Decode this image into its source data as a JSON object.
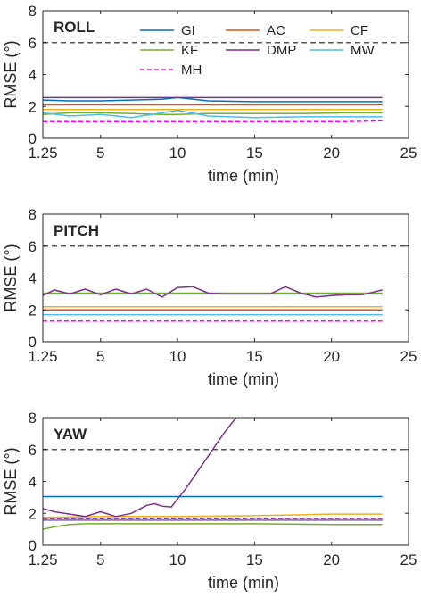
{
  "chart_data": [
    {
      "type": "line",
      "title": "ROLL",
      "xlabel": "time (min)",
      "ylabel": "RMSE (°)",
      "xlim": [
        1.25,
        25
      ],
      "ylim": [
        0,
        8
      ],
      "xticks": [
        "1.25",
        "5",
        "10",
        "15",
        "20",
        "25"
      ],
      "yticks": [
        "0",
        "2",
        "4",
        "6",
        "8"
      ],
      "grid": false,
      "legend": "top-right",
      "reference_line": {
        "y": 6,
        "style": "dashed",
        "color": "#555555"
      },
      "x": [
        1.25,
        3,
        5,
        7,
        9,
        10,
        12,
        15,
        18,
        21,
        23.3
      ],
      "series": [
        {
          "name": "GI",
          "color": "#0072BD",
          "dashed": false,
          "values": [
            2.4,
            2.35,
            2.35,
            2.4,
            2.45,
            2.55,
            2.35,
            2.3,
            2.3,
            2.3,
            2.3
          ]
        },
        {
          "name": "AC",
          "color": "#D95319",
          "dashed": false,
          "values": [
            2.1,
            2.1,
            2.1,
            2.1,
            2.1,
            2.1,
            2.1,
            2.1,
            2.1,
            2.1,
            2.1
          ]
        },
        {
          "name": "CF",
          "color": "#EDB120",
          "dashed": false,
          "values": [
            1.8,
            1.8,
            1.8,
            1.8,
            1.8,
            1.8,
            1.8,
            1.8,
            1.8,
            1.8,
            1.8
          ]
        },
        {
          "name": "KF",
          "color": "#77AC30",
          "dashed": false,
          "values": [
            1.5,
            1.6,
            1.6,
            1.55,
            1.5,
            1.5,
            1.55,
            1.55,
            1.55,
            1.6,
            1.6
          ]
        },
        {
          "name": "DMP",
          "color": "#7E2F8E",
          "dashed": false,
          "values": [
            2.55,
            2.55,
            2.55,
            2.55,
            2.55,
            2.55,
            2.55,
            2.55,
            2.55,
            2.55,
            2.55
          ]
        },
        {
          "name": "MW",
          "color": "#4DBEEE",
          "dashed": false,
          "values": [
            1.6,
            1.4,
            1.5,
            1.3,
            1.6,
            1.75,
            1.4,
            1.3,
            1.35,
            1.35,
            1.35
          ]
        },
        {
          "name": "MH",
          "color": "#FF00FF",
          "dashed": true,
          "values": [
            1.05,
            1.05,
            1.05,
            1.05,
            1.05,
            1.05,
            1.05,
            1.05,
            1.05,
            1.05,
            1.1
          ]
        }
      ]
    },
    {
      "type": "line",
      "title": "PITCH",
      "xlabel": "time (min)",
      "ylabel": "RMSE (°)",
      "xlim": [
        1.25,
        25
      ],
      "ylim": [
        0,
        8
      ],
      "xticks": [
        "1.25",
        "5",
        "10",
        "15",
        "20",
        "25"
      ],
      "yticks": [
        "0",
        "2",
        "4",
        "6",
        "8"
      ],
      "grid": false,
      "reference_line": {
        "y": 6,
        "style": "dashed",
        "color": "#555555"
      },
      "x": [
        1.25,
        2,
        3,
        4,
        5,
        6,
        7,
        8,
        9,
        10,
        11,
        12,
        13,
        14,
        15,
        16,
        17,
        18,
        19,
        20,
        21,
        22,
        23.3
      ],
      "series": [
        {
          "name": "GI",
          "color": "#0072BD",
          "dashed": false,
          "values": [
            3.0,
            3.0,
            3.0,
            3.0,
            3.0,
            3.0,
            3.0,
            3.0,
            3.0,
            3.0,
            3.0,
            3.0,
            3.0,
            3.0,
            3.0,
            3.0,
            3.0,
            3.0,
            3.0,
            3.0,
            3.0,
            3.0,
            3.0
          ]
        },
        {
          "name": "AC",
          "color": "#D95319",
          "dashed": false,
          "values": [
            2.0,
            2.0,
            2.0,
            2.0,
            2.0,
            2.0,
            2.0,
            2.0,
            2.0,
            2.0,
            2.0,
            2.0,
            2.0,
            2.0,
            2.0,
            2.0,
            2.0,
            2.0,
            2.0,
            2.0,
            2.0,
            2.0,
            2.0
          ]
        },
        {
          "name": "CF",
          "color": "#EDB120",
          "dashed": false,
          "values": [
            2.2,
            2.2,
            2.2,
            2.2,
            2.2,
            2.2,
            2.2,
            2.2,
            2.2,
            2.2,
            2.2,
            2.2,
            2.2,
            2.2,
            2.2,
            2.2,
            2.2,
            2.2,
            2.2,
            2.2,
            2.2,
            2.2,
            2.2
          ]
        },
        {
          "name": "KF",
          "color": "#77AC30",
          "dashed": false,
          "values": [
            3.05,
            3.05,
            3.05,
            3.05,
            3.05,
            3.05,
            3.05,
            3.05,
            3.05,
            3.05,
            3.05,
            3.05,
            3.05,
            3.05,
            3.05,
            3.05,
            3.05,
            3.05,
            3.05,
            3.05,
            3.05,
            3.05,
            3.05
          ]
        },
        {
          "name": "DMP",
          "color": "#7E2F8E",
          "dashed": false,
          "values": [
            2.9,
            3.25,
            3.0,
            3.3,
            2.95,
            3.3,
            3.0,
            3.3,
            2.8,
            3.4,
            3.45,
            3.05,
            3.0,
            3.0,
            3.0,
            3.0,
            3.45,
            3.05,
            2.8,
            2.9,
            2.95,
            2.95,
            3.25
          ]
        },
        {
          "name": "MW",
          "color": "#4DBEEE",
          "dashed": false,
          "values": [
            1.7,
            1.7,
            1.7,
            1.7,
            1.7,
            1.7,
            1.7,
            1.7,
            1.7,
            1.7,
            1.7,
            1.7,
            1.7,
            1.7,
            1.7,
            1.7,
            1.7,
            1.7,
            1.7,
            1.7,
            1.7,
            1.7,
            1.7
          ]
        },
        {
          "name": "MH",
          "color": "#FF00FF",
          "dashed": true,
          "values": [
            1.3,
            1.3,
            1.3,
            1.3,
            1.3,
            1.3,
            1.3,
            1.3,
            1.3,
            1.3,
            1.3,
            1.3,
            1.3,
            1.3,
            1.3,
            1.3,
            1.3,
            1.3,
            1.3,
            1.3,
            1.3,
            1.3,
            1.3
          ]
        }
      ]
    },
    {
      "type": "line",
      "title": "YAW",
      "xlabel": "time (min)",
      "ylabel": "RMSE (°)",
      "xlim": [
        1.25,
        25
      ],
      "ylim": [
        0,
        8
      ],
      "xticks": [
        "1.25",
        "5",
        "10",
        "15",
        "20",
        "25"
      ],
      "yticks": [
        "0",
        "2",
        "4",
        "6",
        "8"
      ],
      "grid": false,
      "reference_line": {
        "y": 6,
        "style": "dashed",
        "color": "#555555"
      },
      "x": [
        1.25,
        2,
        3,
        4,
        5,
        6,
        7,
        8,
        8.5,
        9,
        9.6,
        10,
        10.5,
        11,
        12,
        13,
        13.8
      ],
      "series": [
        {
          "name": "GI",
          "color": "#0072BD",
          "dashed": false,
          "x": [
            1.25,
            23.3
          ],
          "values": [
            3.05,
            3.05
          ]
        },
        {
          "name": "AC",
          "color": "#D95319",
          "dashed": false,
          "x": [
            1.25,
            23.3
          ],
          "values": [
            1.6,
            1.6
          ]
        },
        {
          "name": "CF",
          "color": "#EDB120",
          "dashed": false,
          "x": [
            1.25,
            5,
            10,
            15,
            20,
            23.3
          ],
          "values": [
            1.75,
            1.8,
            1.8,
            1.85,
            1.95,
            1.95
          ]
        },
        {
          "name": "KF",
          "color": "#77AC30",
          "dashed": false,
          "x": [
            1.25,
            2,
            3,
            4,
            5,
            10,
            15,
            20,
            23.3
          ],
          "values": [
            1.0,
            1.15,
            1.3,
            1.35,
            1.35,
            1.35,
            1.35,
            1.3,
            1.3
          ]
        },
        {
          "name": "DMP",
          "color": "#7E2F8E",
          "dashed": false,
          "values": [
            2.3,
            2.1,
            1.95,
            1.8,
            2.1,
            1.8,
            2.0,
            2.5,
            2.6,
            2.45,
            2.4,
            2.9,
            3.5,
            4.2,
            5.6,
            7.0,
            8.0
          ]
        },
        {
          "name": "MW",
          "color": "#4DBEEE",
          "dashed": false,
          "x": [
            1.25,
            23.3
          ],
          "values": [
            1.55,
            1.55
          ]
        },
        {
          "name": "MH",
          "color": "#FF00FF",
          "dashed": true,
          "x": [
            1.25,
            23.3
          ],
          "values": [
            1.65,
            1.65
          ]
        }
      ]
    }
  ]
}
